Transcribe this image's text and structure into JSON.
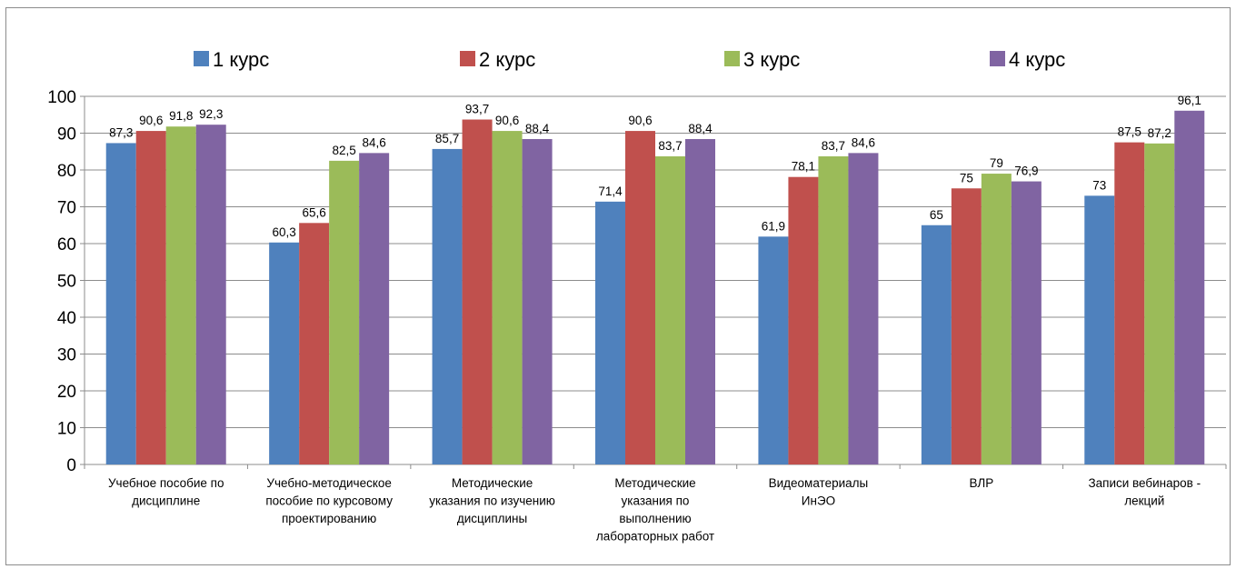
{
  "chart_data": {
    "type": "bar",
    "title": "",
    "xlabel": "",
    "ylabel": "",
    "ylim": [
      0,
      100
    ],
    "yticks": [
      0,
      10,
      20,
      30,
      40,
      50,
      60,
      70,
      80,
      90,
      100
    ],
    "grid": true,
    "legend_position": "top",
    "categories": [
      [
        "Учебное пособие по",
        "дисциплине"
      ],
      [
        "Учебно-методическое",
        "пособие по курсовому",
        "проектированию"
      ],
      [
        "Методические",
        "указания по изучению",
        "дисциплины"
      ],
      [
        "Методические",
        "указания по",
        "выполнению",
        "лабораторных работ"
      ],
      [
        "Видеоматериалы",
        "ИнЭО"
      ],
      [
        "ВЛР"
      ],
      [
        "Записи вебинаров -",
        "лекций"
      ]
    ],
    "series": [
      {
        "name": "1 курс",
        "color": "#4f81bd",
        "values": [
          87.3,
          60.3,
          85.7,
          71.4,
          61.9,
          65,
          73
        ],
        "labels": [
          "87,3",
          "60,3",
          "85,7",
          "71,4",
          "61,9",
          "65",
          "73"
        ]
      },
      {
        "name": "2 курс",
        "color": "#c0504d",
        "values": [
          90.6,
          65.6,
          93.7,
          90.6,
          78.1,
          75,
          87.5
        ],
        "labels": [
          "90,6",
          "65,6",
          "93,7",
          "90,6",
          "78,1",
          "75",
          "87,5"
        ]
      },
      {
        "name": "3 курс",
        "color": "#9bbb59",
        "values": [
          91.8,
          82.5,
          90.6,
          83.7,
          83.7,
          79,
          87.2
        ],
        "labels": [
          "91,8",
          "82,5",
          "90,6",
          "83,7",
          "83,7",
          "79",
          "87,2"
        ]
      },
      {
        "name": "4 курс",
        "color": "#8064a2",
        "values": [
          92.3,
          84.6,
          88.4,
          88.4,
          84.6,
          76.9,
          96.1
        ],
        "labels": [
          "92,3",
          "84,6",
          "88,4",
          "88,4",
          "84,6",
          "76,9",
          "96,1"
        ]
      }
    ]
  }
}
